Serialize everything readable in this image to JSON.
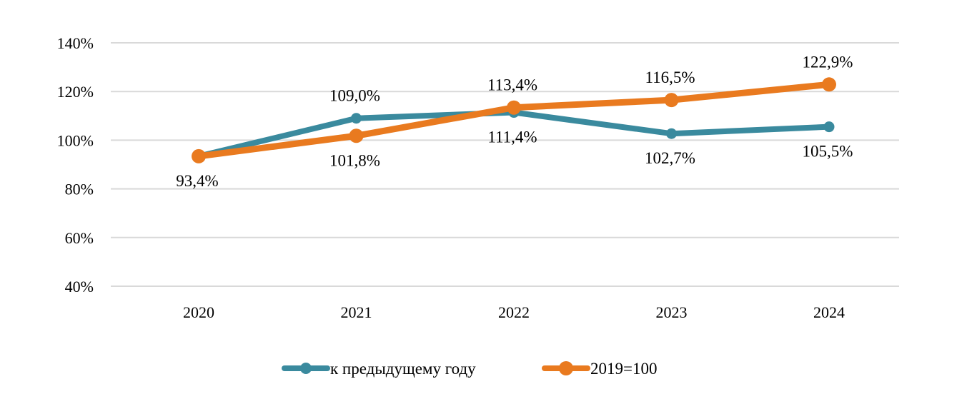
{
  "chart_data": {
    "type": "line",
    "categories": [
      "2020",
      "2021",
      "2022",
      "2023",
      "2024"
    ],
    "y_ticks": [
      "40%",
      "60%",
      "80%",
      "100%",
      "120%",
      "140%"
    ],
    "ylim": [
      40,
      140
    ],
    "grid": true,
    "legend_position": "bottom",
    "series": [
      {
        "name": "к предыдущему году",
        "color": "#3a8a9e",
        "values": [
          93.4,
          109.0,
          111.4,
          102.7,
          105.5
        ],
        "labels": [
          "93,4%",
          "109,0%",
          "111,4%",
          "102,7%",
          "105,5%"
        ],
        "label_positions": [
          "below",
          "above",
          "below",
          "below",
          "below"
        ]
      },
      {
        "name": "2019=100",
        "color": "#e97a1f",
        "values": [
          93.4,
          101.8,
          113.4,
          116.5,
          122.9
        ],
        "labels": [
          "",
          "101,8%",
          "113,4%",
          "116,5%",
          "122,9%"
        ],
        "label_positions": [
          "none",
          "below",
          "above",
          "above",
          "above"
        ]
      }
    ]
  }
}
